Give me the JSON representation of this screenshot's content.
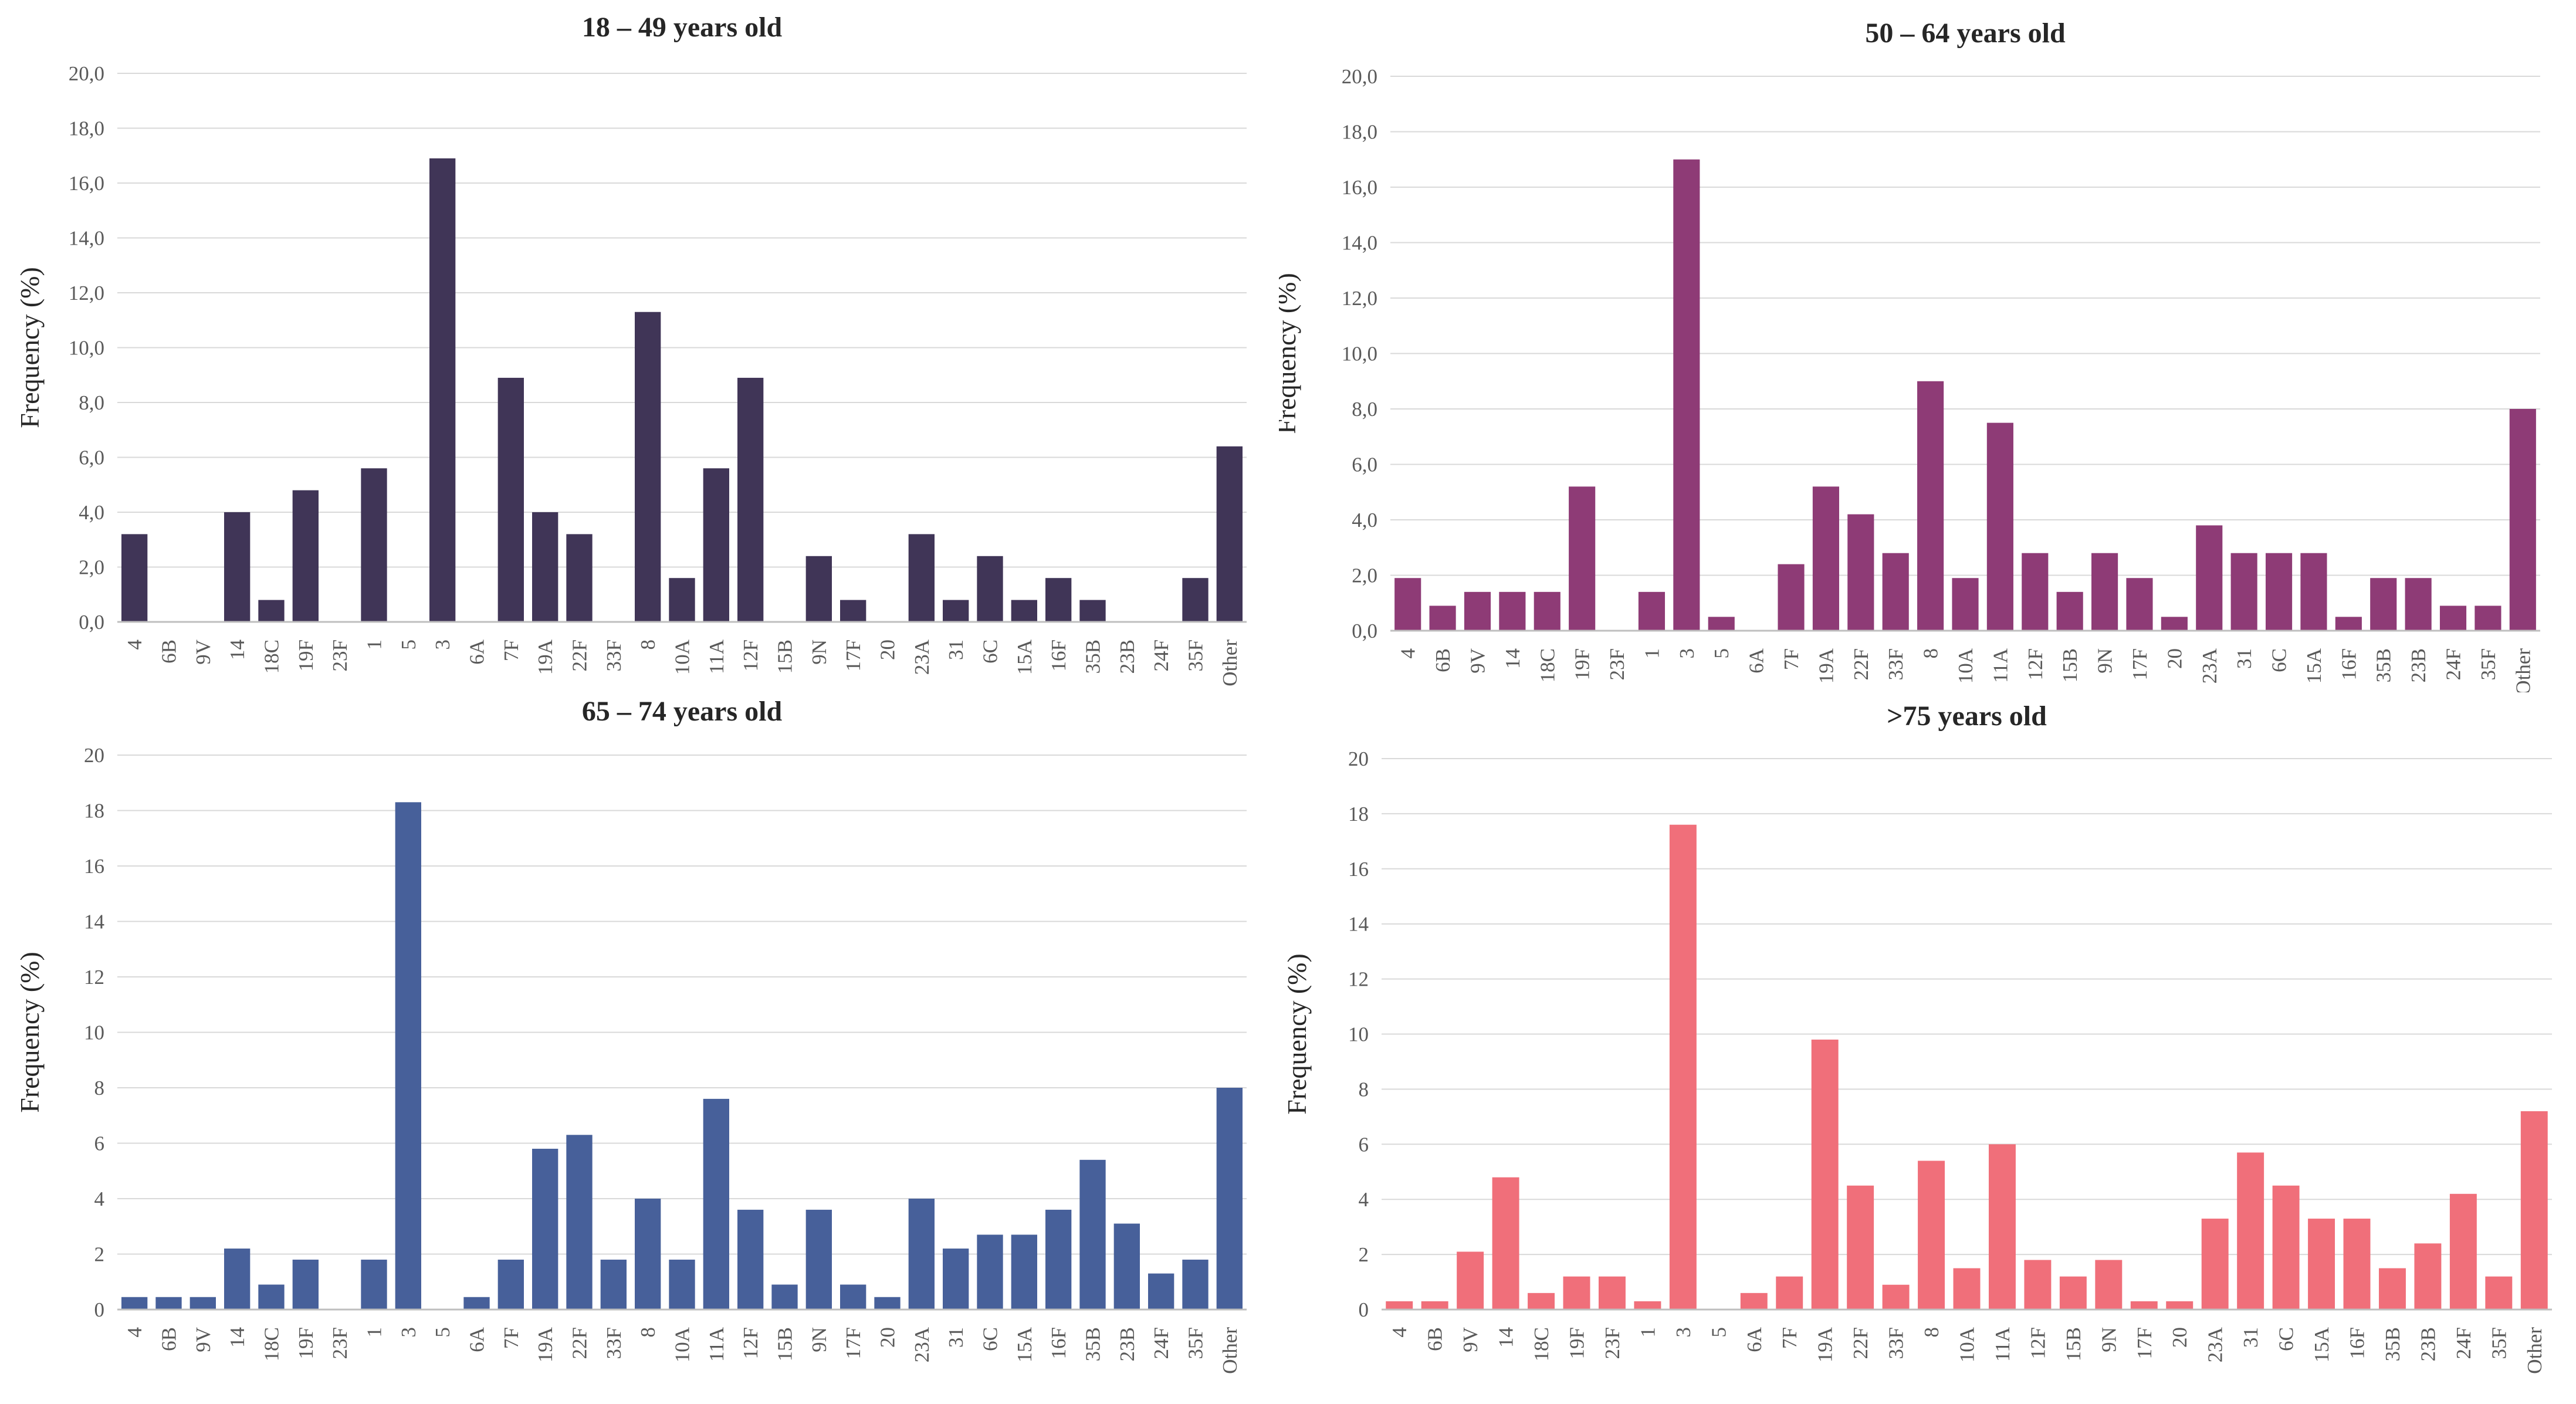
{
  "chart_data": [
    {
      "type": "bar",
      "title": "18 – 49 years old",
      "xlabel": "",
      "ylabel": "Frequency (%)",
      "ylim": [
        0,
        20
      ],
      "yticks": [
        "0,0",
        "2,0",
        "4,0",
        "6,0",
        "8,0",
        "10,0",
        "12,0",
        "14,0",
        "16,0",
        "18,0",
        "20,0"
      ],
      "categories": [
        "4",
        "6B",
        "9V",
        "14",
        "18C",
        "19F",
        "23F",
        "1",
        "5",
        "3",
        "6A",
        "7F",
        "19A",
        "22F",
        "33F",
        "8",
        "10A",
        "11A",
        "12F",
        "15B",
        "9N",
        "17F",
        "20",
        "23A",
        "31",
        "6C",
        "15A",
        "16F",
        "35B",
        "23B",
        "24F",
        "35F",
        "Other"
      ],
      "values": [
        3.2,
        0,
        0,
        4.0,
        0.8,
        4.8,
        0,
        5.6,
        0,
        16.9,
        0,
        8.9,
        4.0,
        3.2,
        0,
        11.3,
        1.6,
        5.6,
        8.9,
        0,
        2.4,
        0.8,
        0,
        3.2,
        0.8,
        2.4,
        0.8,
        1.6,
        0.8,
        0,
        0,
        1.6,
        6.4
      ],
      "color": "#403557",
      "legend": "none",
      "grid": true
    },
    {
      "type": "bar",
      "title": "50 – 64 years old",
      "xlabel": "",
      "ylabel": "Frequency (%)",
      "ylim": [
        0,
        20
      ],
      "yticks": [
        "0,0",
        "2,0",
        "4,0",
        "6,0",
        "8,0",
        "10,0",
        "12,0",
        "14,0",
        "16,0",
        "18,0",
        "20,0"
      ],
      "categories": [
        "4",
        "6B",
        "9V",
        "14",
        "18C",
        "19F",
        "23F",
        "1",
        "3",
        "5",
        "6A",
        "7F",
        "19A",
        "22F",
        "33F",
        "8",
        "10A",
        "11A",
        "12F",
        "15B",
        "9N",
        "17F",
        "20",
        "23A",
        "31",
        "6C",
        "15A",
        "16F",
        "35B",
        "23B",
        "24F",
        "35F",
        "Other"
      ],
      "values": [
        1.9,
        0.9,
        1.4,
        1.4,
        1.4,
        5.2,
        0,
        1.4,
        17.0,
        0.5,
        0,
        2.4,
        5.2,
        4.2,
        2.8,
        9.0,
        1.9,
        7.5,
        2.8,
        1.4,
        2.8,
        1.9,
        0.5,
        3.8,
        2.8,
        2.8,
        2.8,
        0.5,
        1.9,
        1.9,
        0.9,
        0.9,
        8.0
      ],
      "color": "#8e3b76",
      "legend": "none",
      "grid": true
    },
    {
      "type": "bar",
      "title": "65 – 74 years old",
      "xlabel": "",
      "ylabel": "Frequency (%)",
      "ylim": [
        0,
        20
      ],
      "yticks": [
        "0",
        "2",
        "4",
        "6",
        "8",
        "10",
        "12",
        "14",
        "16",
        "18",
        "20"
      ],
      "categories": [
        "4",
        "6B",
        "9V",
        "14",
        "18C",
        "19F",
        "23F",
        "1",
        "3",
        "5",
        "6A",
        "7F",
        "19A",
        "22F",
        "33F",
        "8",
        "10A",
        "11A",
        "12F",
        "15B",
        "9N",
        "17F",
        "20",
        "23A",
        "31",
        "6C",
        "15A",
        "16F",
        "35B",
        "23B",
        "24F",
        "35F",
        "Other"
      ],
      "values": [
        0.45,
        0.45,
        0.45,
        2.2,
        0.9,
        1.8,
        0,
        1.8,
        18.3,
        0,
        0.45,
        1.8,
        5.8,
        6.3,
        1.8,
        4.0,
        1.8,
        7.6,
        3.6,
        0.9,
        3.6,
        0.9,
        0.45,
        4.0,
        2.2,
        2.7,
        2.7,
        3.6,
        5.4,
        3.1,
        1.3,
        1.8,
        8.0
      ],
      "color": "#47609a",
      "legend": "none",
      "grid": true
    },
    {
      "type": "bar",
      "title": ">75 years old",
      "xlabel": "",
      "ylabel": "Frequency (%)",
      "ylim": [
        0,
        20
      ],
      "yticks": [
        "0",
        "2",
        "4",
        "6",
        "8",
        "10",
        "12",
        "14",
        "16",
        "18",
        "20"
      ],
      "categories": [
        "4",
        "6B",
        "9V",
        "14",
        "18C",
        "19F",
        "23F",
        "1",
        "3",
        "5",
        "6A",
        "7F",
        "19A",
        "22F",
        "33F",
        "8",
        "10A",
        "11A",
        "12F",
        "15B",
        "9N",
        "17F",
        "20",
        "23A",
        "31",
        "6C",
        "15A",
        "16F",
        "35B",
        "23B",
        "24F",
        "35F",
        "Other"
      ],
      "values": [
        0.3,
        0.3,
        2.1,
        4.8,
        0.6,
        1.2,
        1.2,
        0.3,
        17.6,
        0,
        0.6,
        1.2,
        9.8,
        4.5,
        0.9,
        5.4,
        1.5,
        6.0,
        1.8,
        1.2,
        1.8,
        0.3,
        0.3,
        3.3,
        5.7,
        4.5,
        3.3,
        3.3,
        1.5,
        2.4,
        4.2,
        1.2,
        7.2
      ],
      "color": "#f06f7a",
      "legend": "none",
      "grid": true
    }
  ]
}
